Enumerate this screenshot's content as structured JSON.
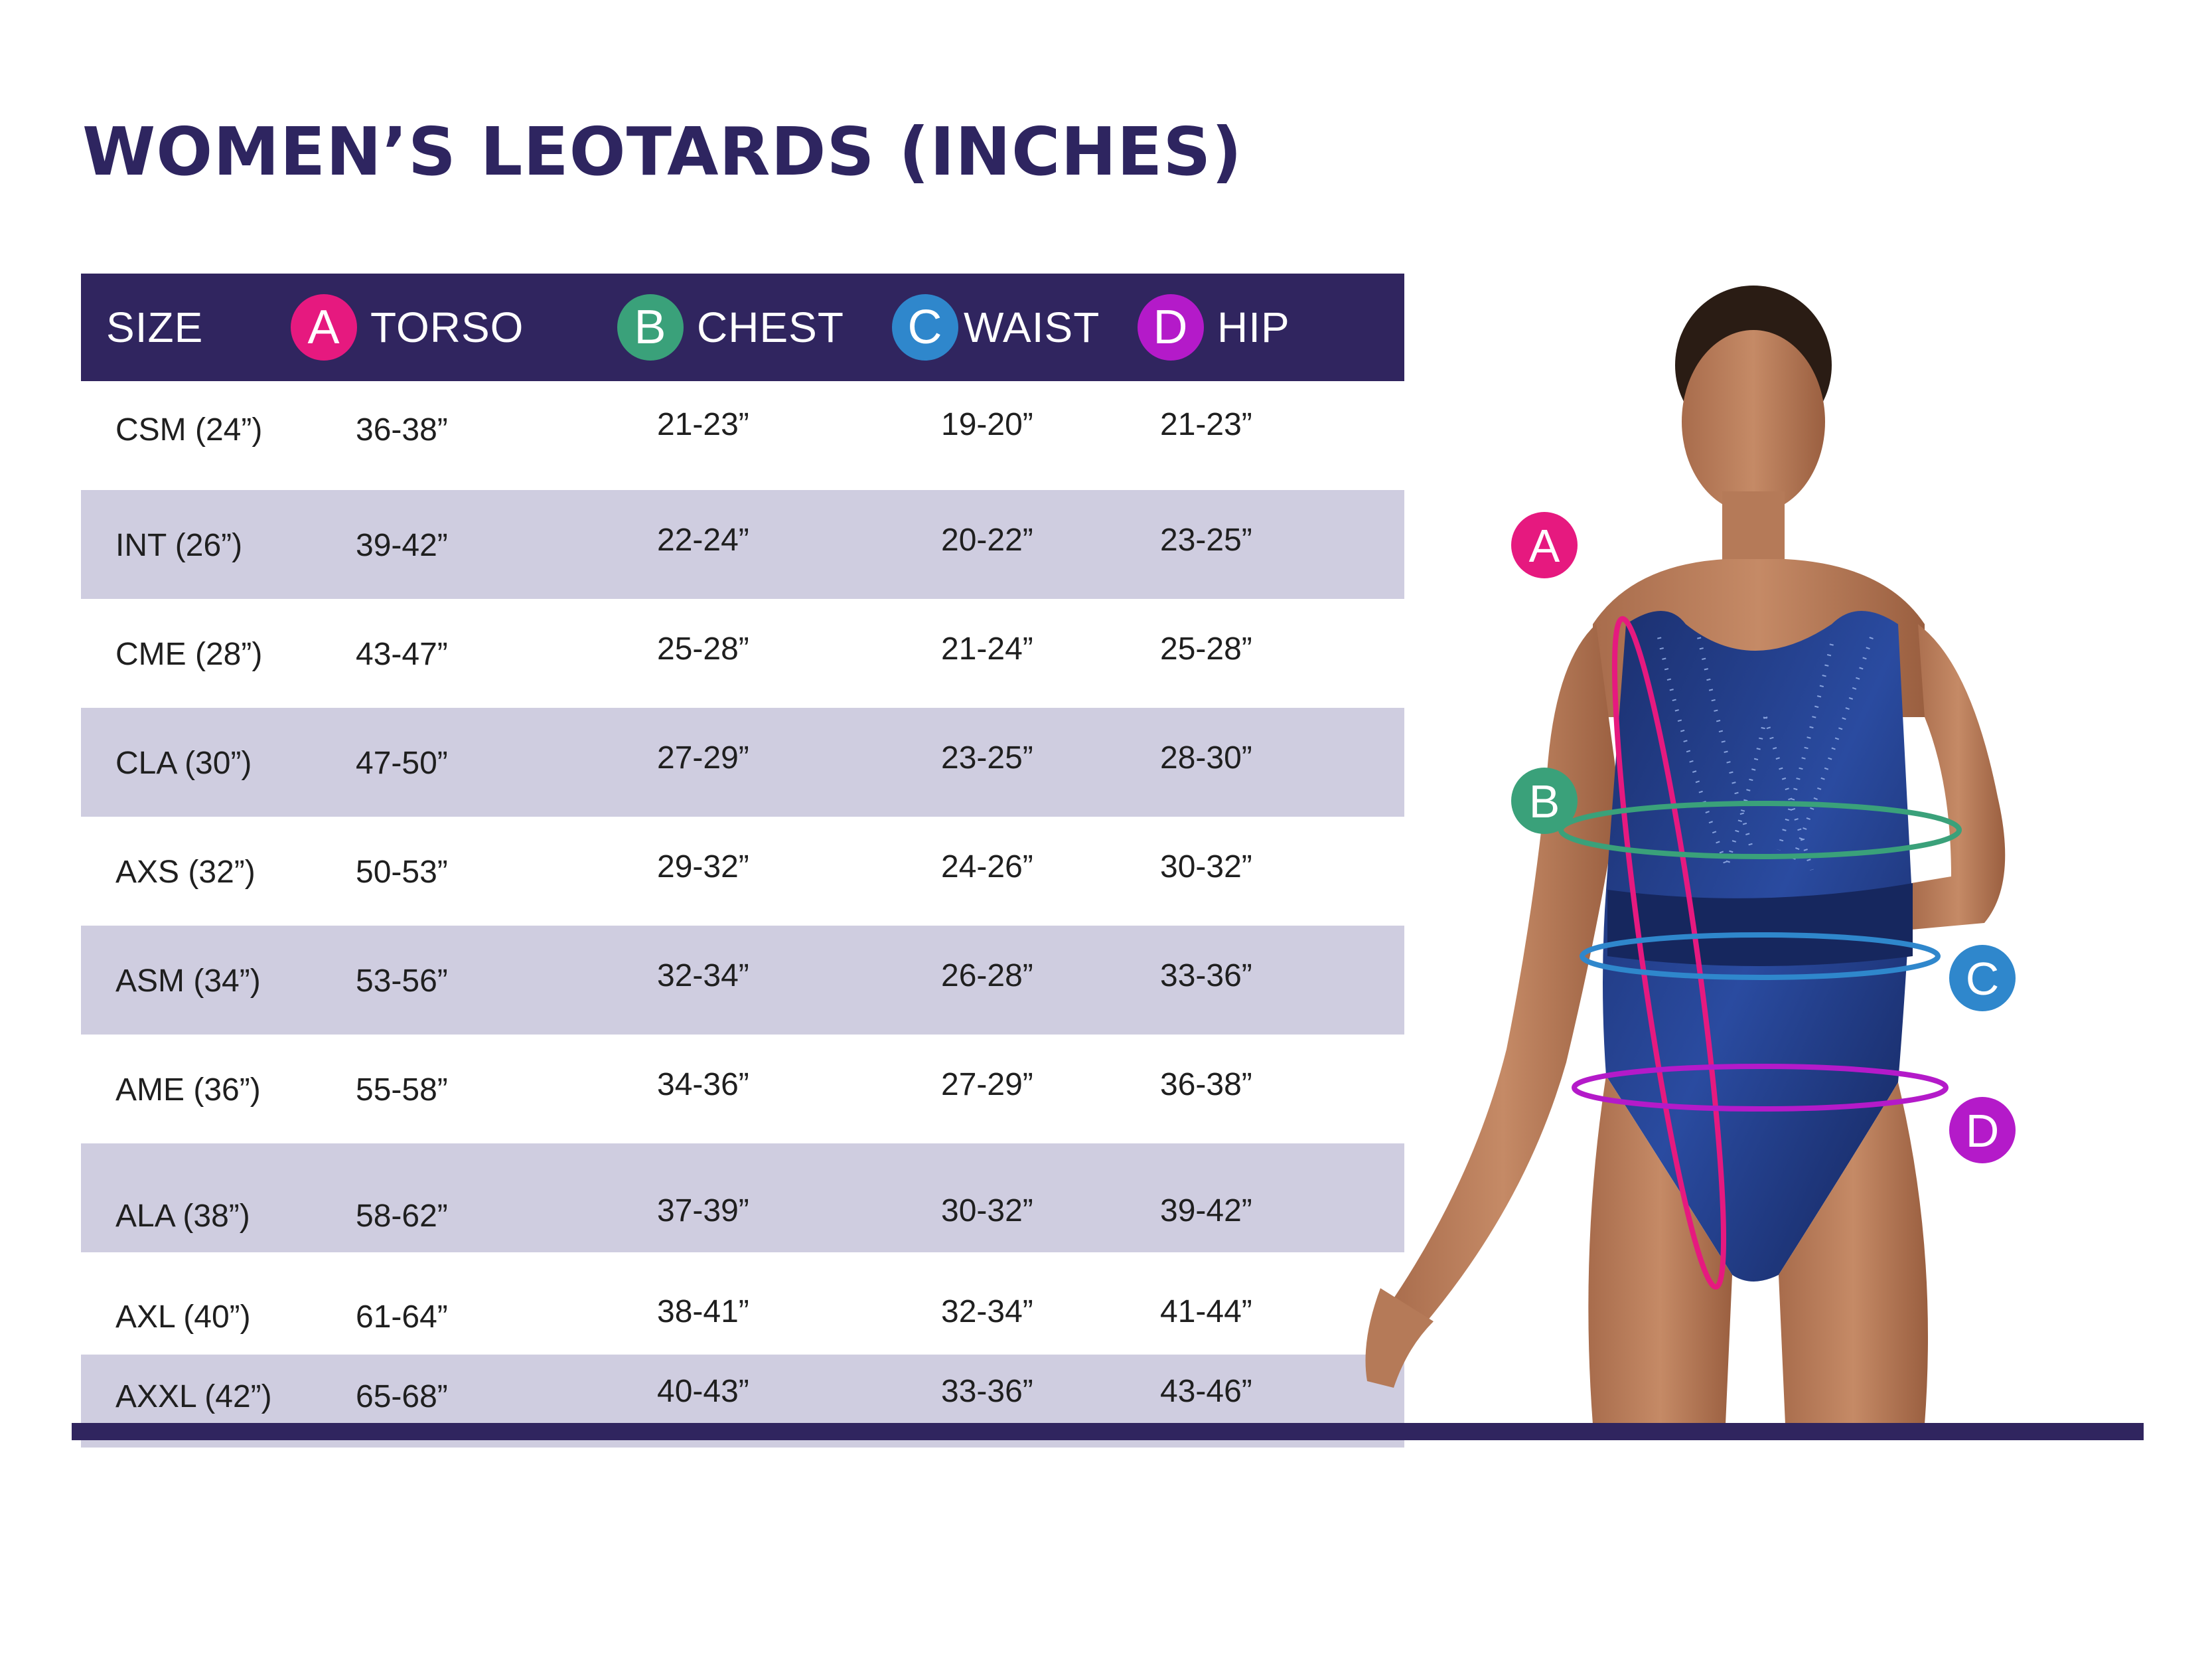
{
  "title": "WOMEN’S LEOTARDS (INCHES)",
  "colors": {
    "header_bg": "#30255f",
    "row_shade": "#cfcde0",
    "badge_a": "#e6197f",
    "badge_b": "#3aa17a",
    "badge_c": "#2f87cc",
    "badge_d": "#b41ac9"
  },
  "header": {
    "size": "SIZE",
    "torso_letter": "A",
    "torso": "TORSO",
    "chest_letter": "B",
    "chest": "CHEST",
    "waist_letter": "C",
    "waist": "WAIST",
    "hip_letter": "D",
    "hip": "HIP"
  },
  "rows": [
    {
      "size": "CSM (24”)",
      "torso": "36-38”",
      "chest": "21-23”",
      "waist": "19-20”",
      "hip": "21-23”"
    },
    {
      "size": "INT (26”)",
      "torso": "39-42”",
      "chest": "22-24”",
      "waist": "20-22”",
      "hip": "23-25”"
    },
    {
      "size": "CME (28”)",
      "torso": "43-47”",
      "chest": "25-28”",
      "waist": "21-24”",
      "hip": "25-28”"
    },
    {
      "size": "CLA (30”)",
      "torso": "47-50”",
      "chest": "27-29”",
      "waist": "23-25”",
      "hip": "28-30”"
    },
    {
      "size": "AXS (32”)",
      "torso": "50-53”",
      "chest": "29-32”",
      "waist": "24-26”",
      "hip": "30-32”"
    },
    {
      "size": "ASM (34”)",
      "torso": "53-56”",
      "chest": "32-34”",
      "waist": "26-28”",
      "hip": "33-36”"
    },
    {
      "size": "AME (36”)",
      "torso": "55-58”",
      "chest": "34-36”",
      "waist": "27-29”",
      "hip": "36-38”"
    },
    {
      "size": "ALA (38”)",
      "torso": "58-62”",
      "chest": "37-39”",
      "waist": "30-32”",
      "hip": "39-42”"
    },
    {
      "size": "AXL (40”)",
      "torso": "61-64”",
      "chest": "38-41”",
      "waist": "32-34”",
      "hip": "41-44”"
    },
    {
      "size": "AXXL (42”)",
      "torso": "65-68”",
      "chest": "40-43”",
      "waist": "33-36”",
      "hip": "43-46”"
    }
  ],
  "figure": {
    "label_a": "A",
    "label_b": "B",
    "label_c": "C",
    "label_d": "D"
  }
}
